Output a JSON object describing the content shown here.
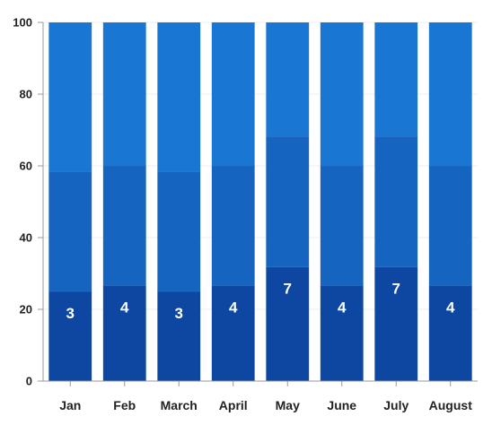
{
  "chart_data": {
    "type": "bar",
    "stacked": "percent",
    "categories": [
      "Jan",
      "Feb",
      "March",
      "April",
      "May",
      "June",
      "July",
      "August"
    ],
    "series": [
      {
        "values": [
          3,
          4,
          3,
          4,
          7,
          4,
          7,
          4
        ],
        "color": "#0d47a1",
        "data_labels": [
          "3",
          "4",
          "3",
          "4",
          "7",
          "4",
          "7",
          "4"
        ]
      },
      {
        "values": [
          4,
          5,
          4,
          5,
          8,
          5,
          8,
          5
        ],
        "color": "#1565c0"
      },
      {
        "values": [
          5,
          6,
          5,
          6,
          7,
          6,
          7,
          6
        ],
        "color": "#1976d2"
      }
    ],
    "ylim": [
      0,
      100
    ],
    "yticks": [
      "0",
      "20",
      "40",
      "60",
      "80",
      "100"
    ],
    "grid": true,
    "legend": "none"
  }
}
